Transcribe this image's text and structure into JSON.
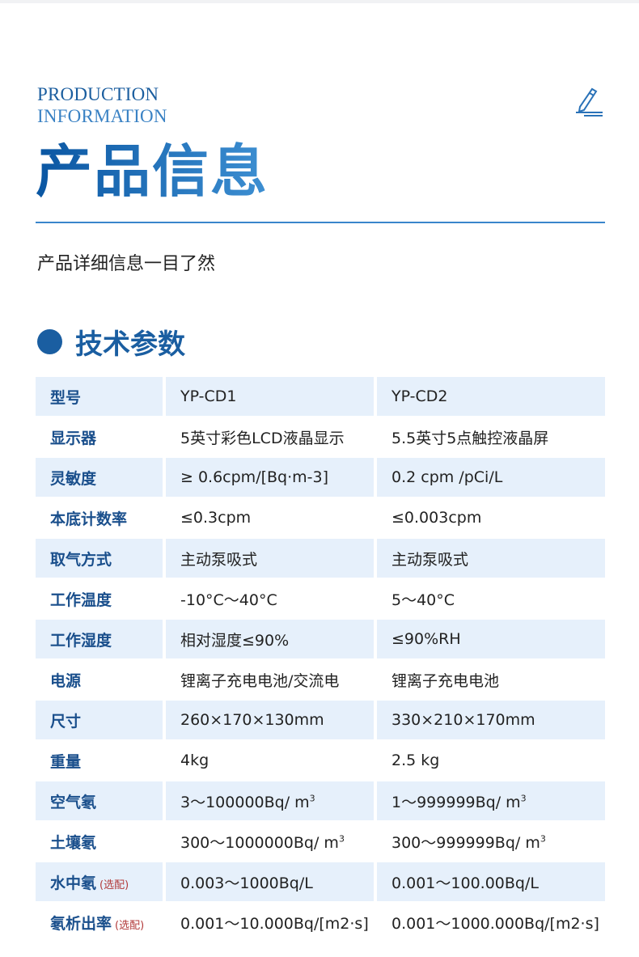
{
  "header": {
    "en_line1": "PRODUCTION",
    "en_line2": "INFORMATION",
    "title": "产品信息",
    "subtitle": "产品详细信息一目了然",
    "icon": "pen-icon"
  },
  "section": {
    "title": "技术参数"
  },
  "table": {
    "rows": [
      {
        "label": "型号",
        "v1": "YP-CD1",
        "v2": "YP-CD2"
      },
      {
        "label": "显示器",
        "v1": "5英寸彩色LCD液晶显示",
        "v2": "5.5英寸5点触控液晶屏"
      },
      {
        "label": "灵敏度",
        "v1": "≥ 0.6cpm/[Bq·m-3]",
        "v2": "0.2 cpm /pCi/L"
      },
      {
        "label": "本底计数率",
        "v1": "≤0.3cpm",
        "v2": "≤0.003cpm"
      },
      {
        "label": "取气方式",
        "v1": "主动泵吸式",
        "v2": "主动泵吸式"
      },
      {
        "label": "工作温度",
        "v1": "-10°C～40°C",
        "v2": "5～40°C"
      },
      {
        "label": "工作湿度",
        "v1": "相对湿度≤90%",
        "v2": "≤90%RH"
      },
      {
        "label": "电源",
        "v1": "锂离子充电电池/交流电",
        "v2": "锂离子充电电池"
      },
      {
        "label": "尺寸",
        "v1": "260×170×130mm",
        "v2": "330×210×170mm"
      },
      {
        "label": "重量",
        "v1": "4kg",
        "v2": "2.5 kg"
      },
      {
        "label": "空气氡",
        "v1": "3～100000Bq/ m",
        "v2": "1～999999Bq/ m",
        "sup": "3"
      },
      {
        "label": "土壤氡",
        "v1": "300～1000000Bq/ m",
        "v2": "300～999999Bq/ m",
        "sup": "3"
      },
      {
        "label": "水中氡",
        "note": "(选配)",
        "v1": "0.003～1000Bq/L",
        "v2": "0.001～100.00Bq/L"
      },
      {
        "label": "氡析出率",
        "note": "(选配)",
        "v1": "0.001～10.000Bq/[m2·s]",
        "v2": "0.001～1000.000Bq/[m2·s]"
      }
    ]
  }
}
